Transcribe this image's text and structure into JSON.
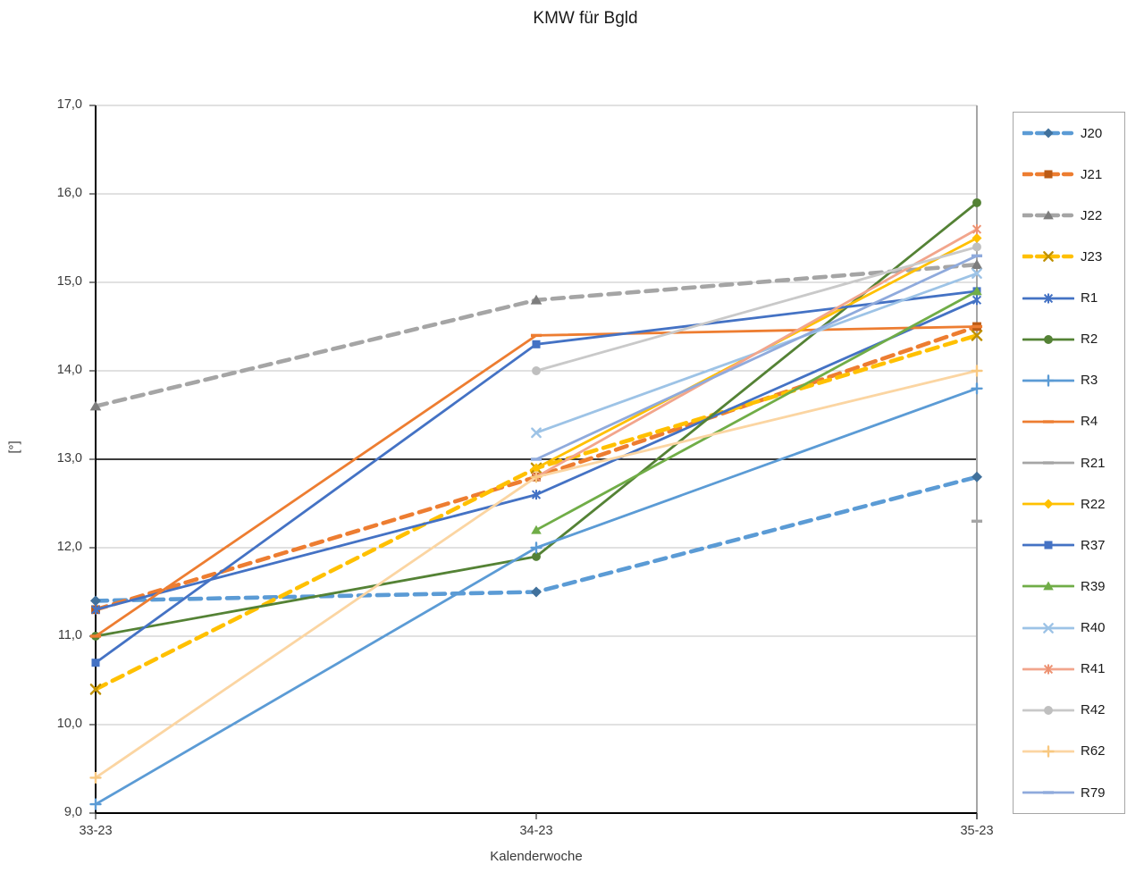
{
  "chart_data": {
    "type": "line",
    "title": "KMW für Bgld",
    "xlabel": "Kalenderwoche",
    "ylabel": "[°]",
    "categories": [
      "33-23",
      "34-23",
      "35-23"
    ],
    "ylim": [
      9,
      17
    ],
    "ystep": 1,
    "y_ticks": [
      "9,0",
      "10,0",
      "11,0",
      "12,0",
      "13,0",
      "14,0",
      "15,0",
      "16,0",
      "17,0"
    ],
    "grid": true,
    "legend_position": "right",
    "highlight_gridline_value": 13,
    "grid_color": "#c3c3c3",
    "axis_color": "#000000",
    "highlight_grid_color": "#1f1f1f",
    "plot_border_color": "#a6a6a6",
    "tick_color": "#404040",
    "series": [
      {
        "name": "J20",
        "values": [
          11.4,
          11.5,
          12.8
        ],
        "color": "#5B9BD5",
        "marker": "diamond",
        "marker_color": "#41719C",
        "dashed": true
      },
      {
        "name": "J21",
        "values": [
          11.3,
          12.8,
          14.5
        ],
        "color": "#ED7D31",
        "marker": "square",
        "marker_color": "#BC5B15",
        "dashed": true
      },
      {
        "name": "J22",
        "values": [
          13.6,
          14.8,
          15.2
        ],
        "color": "#A5A5A5",
        "marker": "triangle",
        "marker_color": "#7D7D7D",
        "dashed": true
      },
      {
        "name": "J23",
        "values": [
          10.4,
          12.9,
          14.4
        ],
        "color": "#FFC000",
        "marker": "x",
        "marker_color": "#BF9000",
        "dashed": true
      },
      {
        "name": "R1",
        "values": [
          11.3,
          12.6,
          14.8
        ],
        "color": "#4472C4",
        "marker": "asterisk",
        "marker_color": "#4472C4",
        "dashed": false
      },
      {
        "name": "R2",
        "values": [
          11.0,
          11.9,
          15.9
        ],
        "color": "#548235",
        "marker": "circle",
        "marker_color": "#548235",
        "dashed": false
      },
      {
        "name": "R3",
        "values": [
          9.1,
          12.0,
          13.8
        ],
        "color": "#5B9BD5",
        "marker": "plus",
        "marker_color": "#5B9BD5",
        "dashed": false
      },
      {
        "name": "R4",
        "values": [
          11.0,
          14.4,
          14.5
        ],
        "color": "#ED7D31",
        "marker": "dash",
        "marker_color": "#ED7D31",
        "dashed": false
      },
      {
        "name": "R21",
        "values": [
          null,
          null,
          12.3
        ],
        "color": "#A5A5A5",
        "marker": "dash",
        "marker_color": "#A5A5A5",
        "dashed": false
      },
      {
        "name": "R22",
        "values": [
          null,
          12.9,
          15.5
        ],
        "color": "#FFC000",
        "marker": "diamond",
        "marker_color": "#FFC000",
        "dashed": false
      },
      {
        "name": "R37",
        "values": [
          10.7,
          14.3,
          14.9
        ],
        "color": "#4472C4",
        "marker": "square",
        "marker_color": "#4472C4",
        "dashed": false
      },
      {
        "name": "R39",
        "values": [
          null,
          12.2,
          14.9
        ],
        "color": "#70AD47",
        "marker": "triangle",
        "marker_color": "#70AD47",
        "dashed": false
      },
      {
        "name": "R40",
        "values": [
          null,
          13.3,
          15.1
        ],
        "color": "#9DC3E6",
        "marker": "x",
        "marker_color": "#9DC3E6",
        "dashed": false
      },
      {
        "name": "R41",
        "values": [
          null,
          12.8,
          15.6
        ],
        "color": "#F2A58C",
        "marker": "asterisk",
        "marker_color": "#ED9272",
        "dashed": false
      },
      {
        "name": "R42",
        "values": [
          null,
          14.0,
          15.4
        ],
        "color": "#C9C9C9",
        "marker": "circle",
        "marker_color": "#BFBFBF",
        "dashed": false
      },
      {
        "name": "R62",
        "values": [
          9.4,
          12.8,
          14.0
        ],
        "color": "#FBD5A2",
        "marker": "plus",
        "marker_color": "#F8C880",
        "dashed": false
      },
      {
        "name": "R79",
        "values": [
          null,
          13.0,
          15.3
        ],
        "color": "#8FAADC",
        "marker": "dash",
        "marker_color": "#8FAADC",
        "dashed": false
      }
    ]
  }
}
